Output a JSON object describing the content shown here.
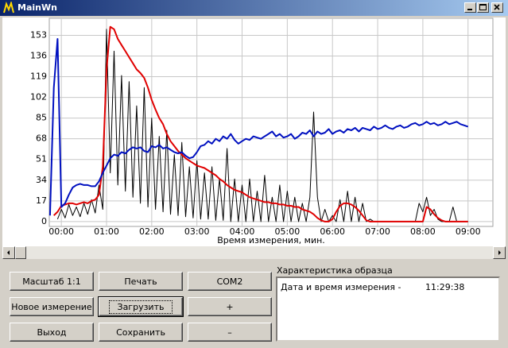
{
  "window": {
    "title": "MainWn"
  },
  "chart_data": {
    "type": "line",
    "x_label": "Время измерения, мин.",
    "x": [
      -15,
      -10,
      -5,
      0,
      5,
      10,
      15,
      20,
      25,
      30,
      35,
      40,
      45,
      50,
      55,
      60,
      65,
      70,
      75,
      80,
      85,
      90,
      95,
      100,
      105,
      110,
      115,
      120,
      125,
      130,
      135,
      140,
      145,
      150,
      155,
      160,
      165,
      170,
      175,
      180,
      185,
      190,
      195,
      200,
      205,
      210,
      215,
      220,
      225,
      230,
      235,
      240,
      245,
      250,
      255,
      260,
      265,
      270,
      275,
      280,
      285,
      290,
      295,
      300,
      305,
      310,
      315,
      320,
      325,
      330,
      335,
      340,
      345,
      350,
      355,
      360,
      365,
      370,
      375,
      380,
      385,
      390,
      395,
      400,
      405,
      410,
      415,
      420,
      425,
      430,
      435,
      440,
      445,
      450,
      455,
      460,
      465,
      470,
      475,
      480,
      485,
      490,
      495,
      500,
      505,
      510,
      515,
      520,
      525,
      530,
      535,
      540
    ],
    "xlim": [
      -16,
      573
    ],
    "ylim": [
      -4,
      167
    ],
    "xticks": [
      {
        "value": 0,
        "label": "00:00"
      },
      {
        "value": 60,
        "label": "01:00"
      },
      {
        "value": 120,
        "label": "02:00"
      },
      {
        "value": 180,
        "label": "03:00"
      },
      {
        "value": 240,
        "label": "04:00"
      },
      {
        "value": 300,
        "label": "05:00"
      },
      {
        "value": 360,
        "label": "06:00"
      },
      {
        "value": 420,
        "label": "07:00"
      },
      {
        "value": 480,
        "label": "08:00"
      },
      {
        "value": 540,
        "label": "09:00"
      }
    ],
    "yticks": [
      0,
      17,
      34,
      51,
      68,
      85,
      102,
      119,
      136,
      153
    ],
    "grid": true,
    "series": [
      {
        "color": "#000000",
        "values": [
          null,
          null,
          2,
          10,
          3,
          14,
          5,
          12,
          4,
          15,
          6,
          18,
          7,
          30,
          10,
          158,
          40,
          140,
          30,
          120,
          25,
          115,
          20,
          95,
          15,
          110,
          12,
          85,
          10,
          70,
          8,
          75,
          6,
          55,
          5,
          65,
          4,
          45,
          3,
          50,
          2,
          40,
          2,
          45,
          1,
          35,
          1,
          60,
          0,
          35,
          0,
          30,
          0,
          35,
          0,
          25,
          0,
          38,
          0,
          20,
          0,
          30,
          0,
          25,
          0,
          20,
          0,
          15,
          0,
          20,
          90,
          20,
          0,
          10,
          0,
          5,
          0,
          18,
          0,
          25,
          0,
          20,
          0,
          15,
          0,
          2,
          0,
          0,
          0,
          0,
          0,
          0,
          0,
          0,
          0,
          0,
          0,
          0,
          15,
          8,
          20,
          5,
          10,
          2,
          0,
          0,
          0,
          12,
          0,
          0,
          0,
          0
        ]
      },
      {
        "color": "#e00000",
        "values": [
          null,
          5,
          8,
          13,
          14,
          15,
          15,
          14,
          15,
          16,
          15,
          17,
          18,
          22,
          45,
          125,
          160,
          158,
          150,
          145,
          140,
          135,
          130,
          125,
          122,
          118,
          110,
          100,
          92,
          85,
          80,
          72,
          66,
          62,
          58,
          55,
          52,
          50,
          48,
          46,
          45,
          44,
          42,
          40,
          38,
          35,
          33,
          30,
          28,
          26,
          25,
          24,
          22,
          20,
          19,
          18,
          17,
          16,
          16,
          15,
          15,
          14,
          14,
          13,
          13,
          12,
          12,
          10,
          9,
          8,
          6,
          3,
          1,
          0,
          0,
          2,
          8,
          13,
          15,
          15,
          14,
          12,
          9,
          5,
          1,
          0,
          0,
          0,
          0,
          0,
          0,
          0,
          0,
          0,
          0,
          0,
          0,
          0,
          0,
          0,
          12,
          10,
          6,
          3,
          1,
          0,
          0,
          0,
          0,
          0,
          0,
          0
        ]
      },
      {
        "color": "#0010c0",
        "values": [
          5,
          110,
          150,
          12,
          15,
          22,
          28,
          30,
          31,
          30,
          30,
          29,
          29,
          33,
          40,
          46,
          52,
          55,
          54,
          57,
          56,
          59,
          61,
          60,
          61,
          58,
          57,
          62,
          61,
          63,
          60,
          61,
          59,
          57,
          56,
          57,
          54,
          52,
          53,
          57,
          62,
          63,
          66,
          64,
          68,
          66,
          70,
          68,
          72,
          67,
          64,
          66,
          68,
          67,
          70,
          69,
          68,
          70,
          72,
          74,
          70,
          72,
          69,
          70,
          72,
          68,
          70,
          73,
          72,
          75,
          70,
          74,
          72,
          73,
          76,
          72,
          74,
          75,
          73,
          76,
          75,
          77,
          74,
          77,
          76,
          75,
          78,
          76,
          77,
          79,
          77,
          76,
          78,
          79,
          77,
          78,
          80,
          81,
          79,
          80,
          82,
          80,
          81,
          79,
          80,
          82,
          80,
          81,
          82,
          80,
          79,
          78
        ]
      }
    ]
  },
  "buttons": [
    "Масштаб 1:1",
    "Печать",
    "COM2",
    "Новое измерение",
    "Загрузить",
    "+",
    "Выход",
    "Сохранить",
    "–"
  ],
  "sample_panel": {
    "title": "Характеристика образца",
    "rows": [
      [
        "Дата и время измерения -",
        "11:29:38"
      ]
    ]
  }
}
